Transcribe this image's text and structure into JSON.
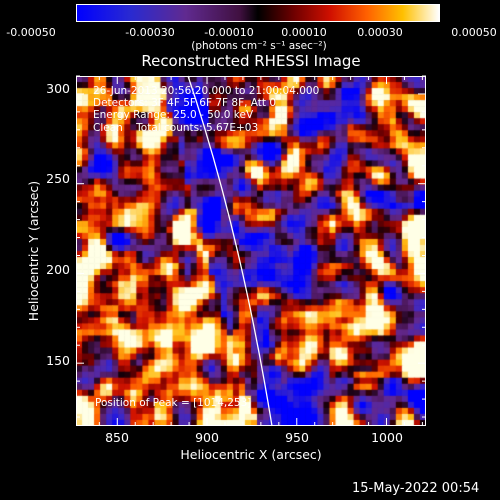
{
  "colorbar": {
    "ticks": [
      "-0.00050",
      "-0.00030",
      "-0.00010",
      "0.00010",
      "0.00030",
      "0.00050"
    ],
    "units": "(photons cm⁻² s⁻¹ asec⁻²)",
    "colors": [
      "#0000ff",
      "#3020b0",
      "#602060",
      "#000000",
      "#600000",
      "#c00000",
      "#ff4000",
      "#ff9000",
      "#ffe000",
      "#ffffff"
    ]
  },
  "plot": {
    "title": "Reconstructed RHESSI Image",
    "xlabel": "Heliocentric X (arcsec)",
    "ylabel": "Heliocentric Y (arcsec)",
    "xticks": [
      "850",
      "900",
      "950",
      "1000"
    ],
    "yticks": [
      "300",
      "250",
      "200",
      "150"
    ],
    "xlim": [
      827,
      1022
    ],
    "ylim": [
      115,
      310
    ]
  },
  "annotations": {
    "time_range": "26-Jun-2013 20:56:20.000 to 21:00:04.000",
    "detectors": "Detectors: 3F 4F 5F 6F 7F 8F, Att 0",
    "energy": "Energy Range: 25.0 - 50.0 keV",
    "clean": "Clean    Total counts: 5.67E+03",
    "peak": "Position of Peak = [1014,253]"
  },
  "footer": {
    "date": "15-May-2022 00:54"
  }
}
